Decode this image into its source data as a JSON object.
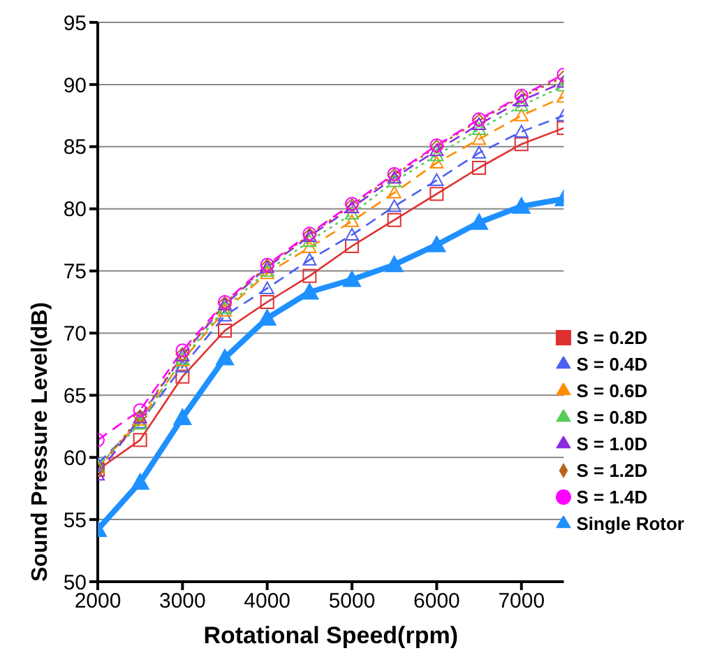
{
  "chart_data": {
    "type": "line",
    "xlabel": "Rotational Speed(rpm)",
    "ylabel": "Sound Pressure Level(dB)",
    "x": [
      2000,
      2500,
      3000,
      3500,
      4000,
      4500,
      5000,
      5500,
      6000,
      6500,
      7000,
      7500
    ],
    "xlim": [
      2000,
      7500
    ],
    "xticks": [
      2000,
      3000,
      4000,
      5000,
      6000,
      7000
    ],
    "ylim": [
      50,
      95
    ],
    "yticks": [
      50,
      55,
      60,
      65,
      70,
      75,
      80,
      85,
      90,
      95
    ],
    "grid": "y",
    "legend": "bottom right",
    "series": [
      {
        "name": "S = 0.2D",
        "color": "#e03030",
        "marker": "square",
        "line_style": "solid",
        "values": [
          59.0,
          61.4,
          66.5,
          70.2,
          72.5,
          74.6,
          77.0,
          79.1,
          81.2,
          83.3,
          85.2,
          86.5
        ]
      },
      {
        "name": "S = 0.4D",
        "color": "#4a5ef0",
        "marker": "triangle",
        "line_style": "dashed",
        "values": [
          59.5,
          62.8,
          67.3,
          71.4,
          73.6,
          75.9,
          77.9,
          80.2,
          82.3,
          84.5,
          86.2,
          87.5
        ]
      },
      {
        "name": "S = 0.6D",
        "color": "#ff8c00",
        "marker": "triangle",
        "line_style": "dashed",
        "values": [
          59.2,
          63.0,
          67.8,
          71.8,
          74.8,
          76.9,
          79.0,
          81.3,
          83.7,
          85.6,
          87.5,
          89.0
        ]
      },
      {
        "name": "S = 0.8D",
        "color": "#55cc55",
        "marker": "triangle",
        "line_style": "dotted",
        "values": [
          59.3,
          62.7,
          67.9,
          72.0,
          75.0,
          77.4,
          79.6,
          82.2,
          84.3,
          86.4,
          88.3,
          89.9
        ]
      },
      {
        "name": "S = 1.0D",
        "color": "#8a2be2",
        "marker": "triangle",
        "line_style": "dashed",
        "values": [
          58.6,
          63.2,
          68.2,
          72.3,
          75.3,
          77.8,
          80.1,
          82.5,
          84.7,
          86.8,
          88.7,
          90.2
        ]
      },
      {
        "name": "S = 1.2D",
        "color": "#b8651b",
        "marker": "diamond",
        "line_style": "dotted",
        "values": [
          59.0,
          63.3,
          68.3,
          72.4,
          75.4,
          77.9,
          80.3,
          82.7,
          85.0,
          87.1,
          89.0,
          90.6
        ]
      },
      {
        "name": "S = 1.4D",
        "color": "#ff00ff",
        "marker": "circle",
        "line_style": "dashed",
        "values": [
          61.4,
          63.8,
          68.6,
          72.5,
          75.5,
          78.0,
          80.4,
          82.8,
          85.1,
          87.2,
          89.1,
          90.8
        ]
      },
      {
        "name": "Single Rotor",
        "color": "#1e90ff",
        "marker": "triangle",
        "line_style": "solid",
        "values": [
          54.2,
          58.0,
          63.2,
          68.0,
          71.2,
          73.3,
          74.3,
          75.5,
          77.1,
          78.9,
          80.2,
          80.8
        ]
      }
    ]
  }
}
